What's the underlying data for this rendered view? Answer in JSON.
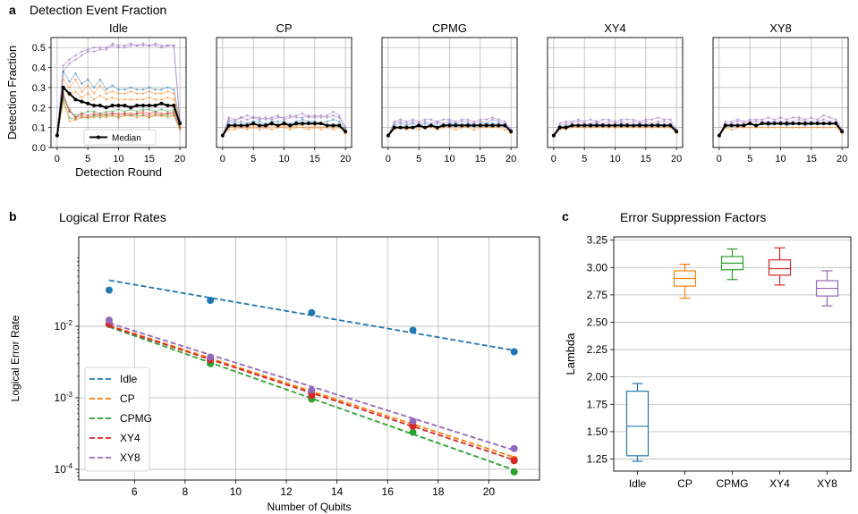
{
  "panels": {
    "a": {
      "label": "a",
      "title": "Detection Event Fraction"
    },
    "b": {
      "label": "b",
      "title": "Logical Error Rates"
    },
    "c": {
      "label": "c",
      "title": "Error Suppression Factors"
    }
  },
  "colors": {
    "Idle": "#1f77b4",
    "CP": "#ff7f0e",
    "CPMG": "#2ca02c",
    "XY4": "#d62728",
    "XY8": "#9467bd",
    "median": "#000000",
    "grid": "#b0b0b0"
  },
  "chart_data": [
    {
      "type": "line",
      "title": "Detection Event Fraction",
      "xlabel": "Detection Round",
      "ylabel": "Detection Fraction",
      "xlim": [
        -1,
        21
      ],
      "ylim": [
        0,
        0.55
      ],
      "xticks": [
        0,
        5,
        10,
        15,
        20
      ],
      "yticks": [
        0.0,
        0.1,
        0.2,
        0.3,
        0.4,
        0.5
      ],
      "ytick_labels": [
        "0.0",
        "0.1",
        "0.2",
        "0.3",
        "0.4",
        "0.5"
      ],
      "xtick_labels": [
        "0",
        "5",
        "10",
        "15",
        "20"
      ],
      "legend": {
        "label": "Median",
        "placement": "lower-center"
      },
      "subplots": [
        {
          "title": "Idle",
          "median": [
            0.06,
            0.3,
            0.27,
            0.24,
            0.23,
            0.22,
            0.21,
            0.21,
            0.2,
            0.21,
            0.21,
            0.21,
            0.2,
            0.21,
            0.21,
            0.21,
            0.21,
            0.22,
            0.21,
            0.21,
            0.12
          ],
          "qubits": [
            [
              0.06,
              0.38,
              0.42,
              0.44,
              0.46,
              0.48,
              0.48,
              0.49,
              0.49,
              0.51,
              0.5,
              0.5,
              0.51,
              0.51,
              0.51,
              0.51,
              0.51,
              0.5,
              0.51,
              0.51,
              0.12
            ],
            [
              0.06,
              0.41,
              0.44,
              0.46,
              0.48,
              0.49,
              0.5,
              0.5,
              0.5,
              0.52,
              0.51,
              0.51,
              0.52,
              0.51,
              0.52,
              0.51,
              0.52,
              0.51,
              0.51,
              0.51,
              0.13
            ],
            [
              0.06,
              0.38,
              0.33,
              0.37,
              0.32,
              0.34,
              0.3,
              0.34,
              0.29,
              0.31,
              0.29,
              0.29,
              0.3,
              0.29,
              0.29,
              0.3,
              0.29,
              0.29,
              0.3,
              0.29,
              0.13
            ],
            [
              0.06,
              0.34,
              0.3,
              0.34,
              0.28,
              0.31,
              0.27,
              0.31,
              0.27,
              0.28,
              0.27,
              0.27,
              0.28,
              0.27,
              0.27,
              0.28,
              0.27,
              0.27,
              0.28,
              0.27,
              0.12
            ],
            [
              0.06,
              0.3,
              0.26,
              0.28,
              0.25,
              0.27,
              0.24,
              0.26,
              0.24,
              0.25,
              0.24,
              0.24,
              0.24,
              0.24,
              0.24,
              0.25,
              0.24,
              0.24,
              0.25,
              0.24,
              0.12
            ],
            [
              0.06,
              0.27,
              0.19,
              0.15,
              0.16,
              0.15,
              0.16,
              0.17,
              0.16,
              0.17,
              0.17,
              0.17,
              0.17,
              0.17,
              0.18,
              0.17,
              0.18,
              0.17,
              0.17,
              0.18,
              0.1
            ],
            [
              0.06,
              0.25,
              0.18,
              0.16,
              0.17,
              0.18,
              0.18,
              0.17,
              0.18,
              0.18,
              0.19,
              0.18,
              0.19,
              0.18,
              0.19,
              0.19,
              0.18,
              0.19,
              0.18,
              0.19,
              0.11
            ],
            [
              0.06,
              0.26,
              0.18,
              0.15,
              0.17,
              0.16,
              0.17,
              0.16,
              0.17,
              0.17,
              0.16,
              0.17,
              0.16,
              0.17,
              0.17,
              0.16,
              0.17,
              0.16,
              0.17,
              0.17,
              0.1
            ],
            [
              0.06,
              0.24,
              0.15,
              0.14,
              0.15,
              0.15,
              0.16,
              0.15,
              0.16,
              0.16,
              0.15,
              0.16,
              0.16,
              0.16,
              0.16,
              0.15,
              0.16,
              0.16,
              0.16,
              0.16,
              0.09
            ],
            [
              0.06,
              0.23,
              0.13,
              0.14,
              0.15,
              0.15,
              0.15,
              0.16,
              0.15,
              0.16,
              0.15,
              0.16,
              0.16,
              0.15,
              0.16,
              0.15,
              0.16,
              0.16,
              0.15,
              0.16,
              0.09
            ]
          ]
        },
        {
          "title": "CP",
          "median": [
            0.06,
            0.11,
            0.11,
            0.11,
            0.11,
            0.12,
            0.11,
            0.11,
            0.12,
            0.11,
            0.12,
            0.11,
            0.12,
            0.12,
            0.12,
            0.12,
            0.12,
            0.11,
            0.11,
            0.11,
            0.08
          ],
          "qubits": [
            [
              0.06,
              0.15,
              0.14,
              0.15,
              0.14,
              0.15,
              0.15,
              0.14,
              0.15,
              0.16,
              0.14,
              0.15,
              0.16,
              0.17,
              0.15,
              0.16,
              0.15,
              0.16,
              0.18,
              0.16,
              0.1
            ],
            [
              0.06,
              0.14,
              0.13,
              0.15,
              0.16,
              0.15,
              0.14,
              0.15,
              0.14,
              0.15,
              0.15,
              0.16,
              0.15,
              0.15,
              0.16,
              0.15,
              0.16,
              0.15,
              0.16,
              0.15,
              0.1
            ],
            [
              0.06,
              0.13,
              0.12,
              0.13,
              0.12,
              0.13,
              0.13,
              0.12,
              0.13,
              0.13,
              0.13,
              0.12,
              0.13,
              0.14,
              0.13,
              0.13,
              0.12,
              0.13,
              0.14,
              0.13,
              0.09
            ],
            [
              0.06,
              0.1,
              0.1,
              0.1,
              0.1,
              0.11,
              0.1,
              0.1,
              0.11,
              0.1,
              0.11,
              0.1,
              0.11,
              0.11,
              0.1,
              0.11,
              0.1,
              0.11,
              0.1,
              0.11,
              0.07
            ],
            [
              0.06,
              0.09,
              0.09,
              0.1,
              0.09,
              0.1,
              0.09,
              0.1,
              0.09,
              0.1,
              0.1,
              0.09,
              0.1,
              0.1,
              0.09,
              0.1,
              0.09,
              0.1,
              0.09,
              0.1,
              0.07
            ]
          ]
        },
        {
          "title": "CPMG",
          "median": [
            0.06,
            0.1,
            0.1,
            0.1,
            0.1,
            0.11,
            0.1,
            0.11,
            0.1,
            0.11,
            0.11,
            0.11,
            0.11,
            0.11,
            0.11,
            0.11,
            0.11,
            0.11,
            0.11,
            0.11,
            0.08
          ],
          "qubits": [
            [
              0.06,
              0.13,
              0.14,
              0.13,
              0.14,
              0.13,
              0.14,
              0.14,
              0.13,
              0.14,
              0.14,
              0.13,
              0.14,
              0.14,
              0.13,
              0.14,
              0.14,
              0.15,
              0.14,
              0.13,
              0.09
            ],
            [
              0.06,
              0.12,
              0.13,
              0.12,
              0.13,
              0.12,
              0.13,
              0.12,
              0.13,
              0.12,
              0.13,
              0.12,
              0.13,
              0.13,
              0.12,
              0.13,
              0.12,
              0.14,
              0.13,
              0.12,
              0.09
            ],
            [
              0.06,
              0.11,
              0.12,
              0.11,
              0.12,
              0.11,
              0.12,
              0.11,
              0.12,
              0.11,
              0.12,
              0.12,
              0.11,
              0.12,
              0.11,
              0.12,
              0.12,
              0.12,
              0.12,
              0.11,
              0.08
            ],
            [
              0.06,
              0.09,
              0.1,
              0.09,
              0.1,
              0.09,
              0.1,
              0.1,
              0.09,
              0.1,
              0.1,
              0.09,
              0.1,
              0.1,
              0.09,
              0.1,
              0.1,
              0.1,
              0.1,
              0.09,
              0.07
            ]
          ]
        },
        {
          "title": "XY4",
          "median": [
            0.06,
            0.1,
            0.1,
            0.11,
            0.11,
            0.11,
            0.11,
            0.11,
            0.11,
            0.11,
            0.11,
            0.11,
            0.11,
            0.11,
            0.11,
            0.11,
            0.11,
            0.11,
            0.11,
            0.11,
            0.08
          ],
          "qubits": [
            [
              0.06,
              0.12,
              0.13,
              0.13,
              0.14,
              0.13,
              0.14,
              0.13,
              0.14,
              0.14,
              0.13,
              0.14,
              0.14,
              0.14,
              0.13,
              0.14,
              0.14,
              0.15,
              0.14,
              0.14,
              0.09
            ],
            [
              0.06,
              0.11,
              0.12,
              0.12,
              0.13,
              0.12,
              0.12,
              0.13,
              0.12,
              0.13,
              0.12,
              0.13,
              0.12,
              0.13,
              0.12,
              0.13,
              0.12,
              0.13,
              0.13,
              0.12,
              0.09
            ],
            [
              0.06,
              0.1,
              0.11,
              0.11,
              0.11,
              0.11,
              0.11,
              0.12,
              0.11,
              0.11,
              0.11,
              0.12,
              0.11,
              0.11,
              0.12,
              0.11,
              0.11,
              0.12,
              0.11,
              0.11,
              0.08
            ],
            [
              0.06,
              0.09,
              0.09,
              0.1,
              0.1,
              0.1,
              0.1,
              0.1,
              0.1,
              0.1,
              0.1,
              0.1,
              0.1,
              0.1,
              0.1,
              0.1,
              0.1,
              0.1,
              0.1,
              0.1,
              0.07
            ]
          ]
        },
        {
          "title": "XY8",
          "median": [
            0.06,
            0.11,
            0.11,
            0.11,
            0.11,
            0.12,
            0.11,
            0.12,
            0.12,
            0.12,
            0.12,
            0.12,
            0.12,
            0.12,
            0.12,
            0.12,
            0.12,
            0.12,
            0.12,
            0.12,
            0.08
          ],
          "qubits": [
            [
              0.06,
              0.13,
              0.13,
              0.14,
              0.13,
              0.14,
              0.14,
              0.14,
              0.15,
              0.14,
              0.15,
              0.14,
              0.15,
              0.15,
              0.14,
              0.15,
              0.14,
              0.16,
              0.15,
              0.14,
              0.09
            ],
            [
              0.06,
              0.12,
              0.12,
              0.13,
              0.12,
              0.13,
              0.13,
              0.13,
              0.13,
              0.13,
              0.13,
              0.13,
              0.13,
              0.14,
              0.13,
              0.13,
              0.13,
              0.14,
              0.13,
              0.13,
              0.09
            ],
            [
              0.06,
              0.11,
              0.11,
              0.11,
              0.11,
              0.12,
              0.11,
              0.12,
              0.11,
              0.12,
              0.12,
              0.11,
              0.12,
              0.12,
              0.11,
              0.12,
              0.12,
              0.12,
              0.12,
              0.12,
              0.08
            ],
            [
              0.06,
              0.1,
              0.09,
              0.1,
              0.1,
              0.1,
              0.1,
              0.1,
              0.1,
              0.1,
              0.1,
              0.1,
              0.1,
              0.1,
              0.1,
              0.1,
              0.1,
              0.1,
              0.1,
              0.1,
              0.07
            ]
          ]
        }
      ]
    },
    {
      "type": "scatter",
      "title": "Logical Error Rates",
      "xlabel": "Number of Qubits",
      "ylabel": "Logical Error Rate",
      "yscale": "log",
      "xlim": [
        3.8,
        22.0
      ],
      "ylim_log10": [
        -4.15,
        -0.75
      ],
      "xticks": [
        6,
        8,
        10,
        12,
        14,
        16,
        18,
        20
      ],
      "xtick_labels": [
        "6",
        "8",
        "10",
        "12",
        "14",
        "16",
        "18",
        "20"
      ],
      "ytick_exponents": [
        -4,
        -3,
        -2
      ],
      "ytick_labels": [
        {
          "base": "10",
          "exp": "-4"
        },
        {
          "base": "10",
          "exp": "-3"
        },
        {
          "base": "10",
          "exp": "-2"
        }
      ],
      "legend_placement": "lower-left",
      "series": [
        {
          "name": "Idle",
          "x": [
            5,
            9,
            13,
            17,
            21
          ],
          "y": [
            0.032,
            0.023,
            0.0155,
            0.0088,
            0.0044
          ],
          "fit": [
            0.044,
            0.0046
          ]
        },
        {
          "name": "CP",
          "x": [
            5,
            9,
            13,
            17,
            21
          ],
          "y": [
            0.0108,
            0.0032,
            0.00115,
            0.00042,
            0.000138
          ],
          "fit": [
            0.0103,
            0.000148
          ]
        },
        {
          "name": "CPMG",
          "x": [
            5,
            9,
            13,
            17,
            21
          ],
          "y": [
            0.0106,
            0.003,
            0.00096,
            0.00033,
            9.2e-05
          ],
          "fit": [
            0.0098,
            9.8e-05
          ]
        },
        {
          "name": "XY4",
          "x": [
            5,
            9,
            13,
            17,
            21
          ],
          "y": [
            0.0108,
            0.0034,
            0.00108,
            0.0004,
            0.000132
          ],
          "fit": [
            0.0101,
            0.000135
          ]
        },
        {
          "name": "XY8",
          "x": [
            5,
            9,
            13,
            17,
            21
          ],
          "y": [
            0.0122,
            0.0037,
            0.00128,
            0.00047,
            0.000195
          ],
          "fit": [
            0.0111,
            0.000185
          ]
        }
      ]
    },
    {
      "type": "box",
      "title": "Error Suppression Factors",
      "xlabel": "",
      "ylabel": "Lambda",
      "ylim": [
        1.14,
        3.28
      ],
      "yticks": [
        1.25,
        1.5,
        1.75,
        2.0,
        2.25,
        2.5,
        2.75,
        3.0,
        3.25
      ],
      "ytick_labels": [
        "1.25",
        "1.50",
        "1.75",
        "2.00",
        "2.25",
        "2.50",
        "2.75",
        "3.00",
        "3.25"
      ],
      "categories": [
        "Idle",
        "CP",
        "CPMG",
        "XY4",
        "XY8"
      ],
      "boxes": [
        {
          "name": "Idle",
          "whislo": 1.23,
          "q1": 1.28,
          "median": 1.55,
          "q3": 1.87,
          "whishi": 1.94
        },
        {
          "name": "CP",
          "whislo": 2.72,
          "q1": 2.83,
          "median": 2.9,
          "q3": 2.97,
          "whishi": 3.03
        },
        {
          "name": "CPMG",
          "whislo": 2.89,
          "q1": 2.98,
          "median": 3.04,
          "q3": 3.1,
          "whishi": 3.17
        },
        {
          "name": "XY4",
          "whislo": 2.84,
          "q1": 2.93,
          "median": 2.99,
          "q3": 3.07,
          "whishi": 3.18
        },
        {
          "name": "XY8",
          "whislo": 2.65,
          "q1": 2.74,
          "median": 2.81,
          "q3": 2.88,
          "whishi": 2.97
        }
      ]
    }
  ]
}
